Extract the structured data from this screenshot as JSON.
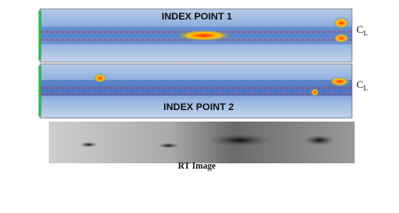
{
  "panels": [
    {
      "title": "INDEX POINT 1",
      "marker": {
        "main": "C",
        "sub": "L"
      }
    },
    {
      "title": "INDEX POINT 2",
      "marker": {
        "main": "C",
        "sub": "L"
      }
    }
  ],
  "rt_image": {
    "caption": "RT Image"
  }
}
